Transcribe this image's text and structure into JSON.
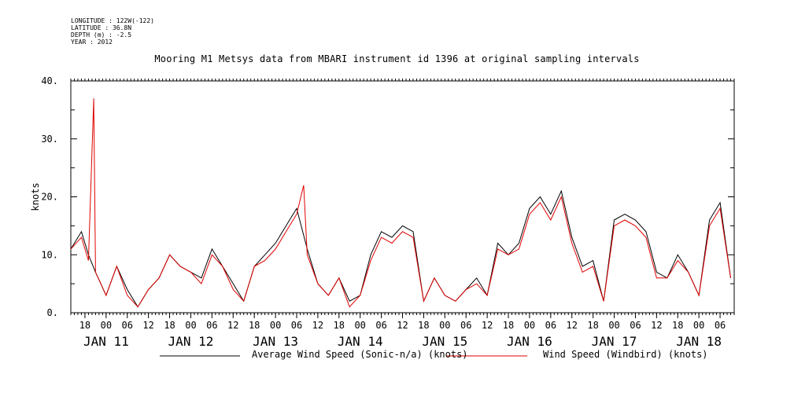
{
  "header": {
    "longitude": "LONGITUDE : 122W(-122)",
    "latitude": "LATITUDE : 36.8N",
    "depth": "DEPTH (m) : -2.5",
    "year": "YEAR : 2012"
  },
  "colors": {
    "average": "#000000",
    "windbird": "#e00000"
  },
  "chart_data": {
    "type": "line",
    "title": "Mooring M1 Metsys data from MBARI instrument id 1396 at original sampling intervals",
    "ylabel": "knots",
    "xlabel": "",
    "ylim": [
      0,
      40
    ],
    "yticks": [
      0,
      10,
      20,
      30,
      40
    ],
    "ytick_labels": [
      "0.",
      "10.",
      "20.",
      "30.",
      "40."
    ],
    "xlim": [
      "2012-01-10T14:00",
      "2012-01-18T10:00"
    ],
    "hour_labels": [
      "18",
      "00",
      "06",
      "12",
      "18",
      "00",
      "06",
      "12",
      "18",
      "00",
      "06",
      "12",
      "18",
      "00",
      "06",
      "12",
      "18",
      "00",
      "06",
      "12",
      "18",
      "00",
      "06",
      "12",
      "18",
      "00",
      "06",
      "12",
      "18",
      "00",
      "06"
    ],
    "hour_label_start": "2012-01-10T18:00",
    "day_labels": [
      "JAN 11",
      "JAN 12",
      "JAN 13",
      "JAN 14",
      "JAN 15",
      "JAN 16",
      "JAN 17",
      "JAN 18"
    ],
    "day_label_dates": [
      "2012-01-11",
      "2012-01-12",
      "2012-01-13",
      "2012-01-14",
      "2012-01-15",
      "2012-01-16",
      "2012-01-17",
      "2012-01-18"
    ],
    "series": [
      {
        "name": "Average Wind Speed (Sonic-n/a) (knots)",
        "x": [
          "2012-01-10T14:00",
          "2012-01-10T17:00",
          "2012-01-10T19:00",
          "2012-01-10T21:00",
          "2012-01-11T00:00",
          "2012-01-11T03:00",
          "2012-01-11T06:00",
          "2012-01-11T09:00",
          "2012-01-11T12:00",
          "2012-01-11T15:00",
          "2012-01-11T18:00",
          "2012-01-11T21:00",
          "2012-01-12T00:00",
          "2012-01-12T03:00",
          "2012-01-12T06:00",
          "2012-01-12T09:00",
          "2012-01-12T12:00",
          "2012-01-12T15:00",
          "2012-01-12T18:00",
          "2012-01-12T21:00",
          "2012-01-13T00:00",
          "2012-01-13T03:00",
          "2012-01-13T06:00",
          "2012-01-13T09:00",
          "2012-01-13T12:00",
          "2012-01-13T15:00",
          "2012-01-13T18:00",
          "2012-01-13T21:00",
          "2012-01-14T00:00",
          "2012-01-14T03:00",
          "2012-01-14T06:00",
          "2012-01-14T09:00",
          "2012-01-14T12:00",
          "2012-01-14T15:00",
          "2012-01-14T18:00",
          "2012-01-14T21:00",
          "2012-01-15T00:00",
          "2012-01-15T03:00",
          "2012-01-15T06:00",
          "2012-01-15T09:00",
          "2012-01-15T12:00",
          "2012-01-15T15:00",
          "2012-01-15T18:00",
          "2012-01-15T21:00",
          "2012-01-16T00:00",
          "2012-01-16T03:00",
          "2012-01-16T06:00",
          "2012-01-16T09:00",
          "2012-01-16T12:00",
          "2012-01-16T15:00",
          "2012-01-16T18:00",
          "2012-01-16T21:00",
          "2012-01-17T00:00",
          "2012-01-17T03:00",
          "2012-01-17T06:00",
          "2012-01-17T09:00",
          "2012-01-17T12:00",
          "2012-01-17T15:00",
          "2012-01-17T18:00",
          "2012-01-17T21:00",
          "2012-01-18T00:00",
          "2012-01-18T03:00",
          "2012-01-18T06:00",
          "2012-01-18T09:00"
        ],
        "values": [
          11,
          14,
          10,
          7,
          3,
          8,
          4,
          1,
          4,
          6,
          10,
          8,
          7,
          6,
          11,
          8,
          5,
          2,
          8,
          10,
          12,
          15,
          18,
          11,
          5,
          3,
          6,
          2,
          3,
          10,
          14,
          13,
          15,
          14,
          2,
          6,
          3,
          2,
          4,
          6,
          3,
          12,
          10,
          12,
          18,
          20,
          17,
          21,
          13,
          8,
          9,
          2,
          16,
          17,
          16,
          14,
          7,
          6,
          10,
          7,
          3,
          16,
          19,
          6
        ],
        "color": "#000000"
      },
      {
        "name": "Wind Speed (Windbird) (knots)",
        "x": [
          "2012-01-10T14:00",
          "2012-01-10T17:00",
          "2012-01-10T19:00",
          "2012-01-10T20:30",
          "2012-01-10T21:00",
          "2012-01-11T00:00",
          "2012-01-11T03:00",
          "2012-01-11T06:00",
          "2012-01-11T09:00",
          "2012-01-11T12:00",
          "2012-01-11T15:00",
          "2012-01-11T18:00",
          "2012-01-11T21:00",
          "2012-01-12T00:00",
          "2012-01-12T03:00",
          "2012-01-12T06:00",
          "2012-01-12T09:00",
          "2012-01-12T12:00",
          "2012-01-12T15:00",
          "2012-01-12T18:00",
          "2012-01-12T21:00",
          "2012-01-13T00:00",
          "2012-01-13T03:00",
          "2012-01-13T06:00",
          "2012-01-13T08:00",
          "2012-01-13T09:00",
          "2012-01-13T12:00",
          "2012-01-13T15:00",
          "2012-01-13T18:00",
          "2012-01-13T21:00",
          "2012-01-14T00:00",
          "2012-01-14T03:00",
          "2012-01-14T06:00",
          "2012-01-14T09:00",
          "2012-01-14T12:00",
          "2012-01-14T15:00",
          "2012-01-14T18:00",
          "2012-01-14T21:00",
          "2012-01-15T00:00",
          "2012-01-15T03:00",
          "2012-01-15T06:00",
          "2012-01-15T09:00",
          "2012-01-15T12:00",
          "2012-01-15T15:00",
          "2012-01-15T18:00",
          "2012-01-15T21:00",
          "2012-01-16T00:00",
          "2012-01-16T03:00",
          "2012-01-16T06:00",
          "2012-01-16T09:00",
          "2012-01-16T12:00",
          "2012-01-16T15:00",
          "2012-01-16T18:00",
          "2012-01-16T21:00",
          "2012-01-17T00:00",
          "2012-01-17T03:00",
          "2012-01-17T06:00",
          "2012-01-17T09:00",
          "2012-01-17T12:00",
          "2012-01-17T15:00",
          "2012-01-17T18:00",
          "2012-01-17T21:00",
          "2012-01-18T00:00",
          "2012-01-18T03:00",
          "2012-01-18T06:00",
          "2012-01-18T09:00"
        ],
        "values": [
          11,
          13,
          9,
          37,
          7,
          3,
          8,
          3,
          1,
          4,
          6,
          10,
          8,
          7,
          5,
          10,
          8,
          4,
          2,
          8,
          9,
          11,
          14,
          17,
          22,
          10,
          5,
          3,
          6,
          1,
          3,
          9,
          13,
          12,
          14,
          13,
          2,
          6,
          3,
          2,
          4,
          5,
          3,
          11,
          10,
          11,
          17,
          19,
          16,
          20,
          12,
          7,
          8,
          2,
          15,
          16,
          15,
          13,
          6,
          6,
          9,
          7,
          3,
          15,
          18,
          6
        ],
        "color": "#e00000"
      }
    ],
    "grid": false,
    "legend": "bottom"
  }
}
